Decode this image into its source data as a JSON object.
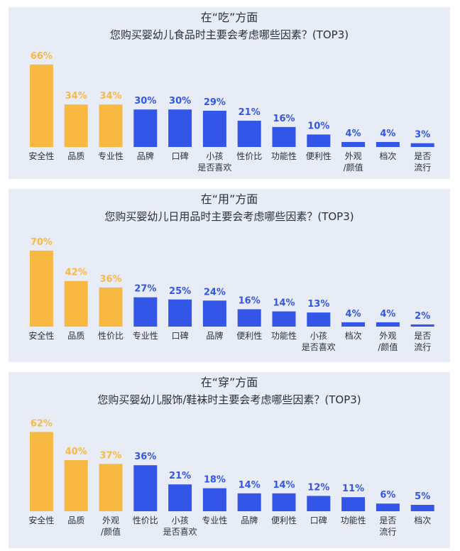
{
  "colors": {
    "highlight": "#f7b942",
    "normal": "#3356e8",
    "panel_bg": "#e8ecf7"
  },
  "chart_data": [
    {
      "type": "bar",
      "title": "在“吃”方面",
      "subtitle": "您购买婴幼儿食品时主要会考虑哪些因素？(TOP3)",
      "unit": "%",
      "highlight_count": 3,
      "categories": [
        "安全性",
        "品质",
        "专业性",
        "品牌",
        "口碑",
        "小孩\n是否喜欢",
        "性价比",
        "功能性",
        "便利性",
        "外观\n/颜值",
        "档次",
        "是否\n流行"
      ],
      "values": [
        66,
        34,
        34,
        30,
        30,
        29,
        21,
        16,
        10,
        4,
        4,
        3
      ]
    },
    {
      "type": "bar",
      "title": "在“用”方面",
      "subtitle": "您购买婴幼儿日用品时主要会考虑哪些因素？(TOP3)",
      "unit": "%",
      "highlight_count": 3,
      "categories": [
        "安全性",
        "品质",
        "性价比",
        "专业性",
        "口碑",
        "品牌",
        "便利性",
        "功能性",
        "小孩\n是否喜欢",
        "档次",
        "外观\n/颜值",
        "是否\n流行"
      ],
      "values": [
        70,
        42,
        36,
        27,
        25,
        24,
        16,
        14,
        13,
        4,
        4,
        2
      ]
    },
    {
      "type": "bar",
      "title": "在“穿”方面",
      "subtitle": "您购买婴幼儿服饰/鞋袜时主要会考虑哪些因素？(TOP3)",
      "unit": "%",
      "highlight_count": 3,
      "categories": [
        "安全性",
        "品质",
        "外观\n/颜值",
        "性价比",
        "小孩\n是否喜欢",
        "专业性",
        "品牌",
        "便利性",
        "口碑",
        "功能性",
        "是否\n流行",
        "档次"
      ],
      "values": [
        62,
        40,
        37,
        36,
        21,
        18,
        14,
        14,
        12,
        11,
        6,
        5
      ]
    }
  ]
}
